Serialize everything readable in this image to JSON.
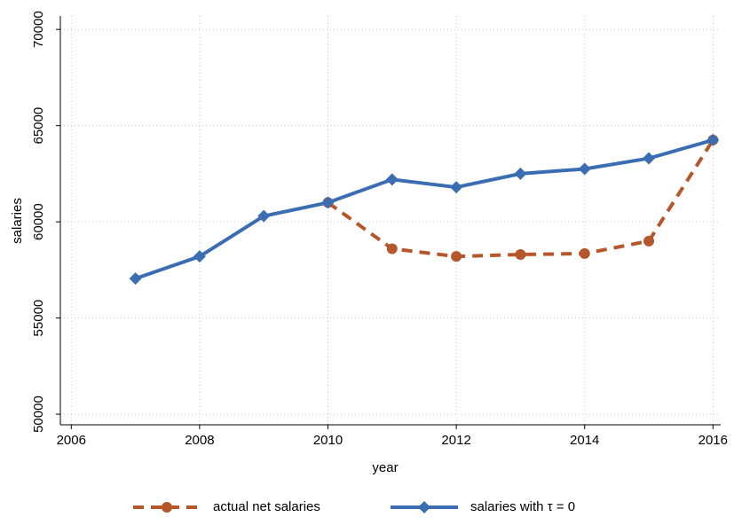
{
  "chart_data": {
    "type": "line",
    "x_label": "year",
    "y_label": "salaries",
    "x": [
      2007,
      2008,
      2009,
      2010,
      2011,
      2012,
      2013,
      2014,
      2015,
      2016
    ],
    "series": [
      {
        "name": "actual net salaries",
        "color": "#b5562b",
        "dash": true,
        "marker": "circle",
        "values": [
          null,
          null,
          null,
          61000,
          58600,
          58200,
          58300,
          58350,
          59000,
          64250
        ]
      },
      {
        "name": "salaries with τ = 0",
        "color": "#3b6db3",
        "dash": false,
        "marker": "diamond",
        "values": [
          57050,
          58200,
          60300,
          61000,
          62200,
          61800,
          62500,
          62750,
          63300,
          64250
        ]
      }
    ],
    "xlim": [
      2005.83,
      2016.12
    ],
    "xticks": [
      2006,
      2008,
      2010,
      2012,
      2014,
      2016
    ],
    "ylim": [
      49450,
      70700
    ],
    "yticks": [
      50000,
      55000,
      60000,
      65000,
      70000
    ],
    "grid": true
  }
}
